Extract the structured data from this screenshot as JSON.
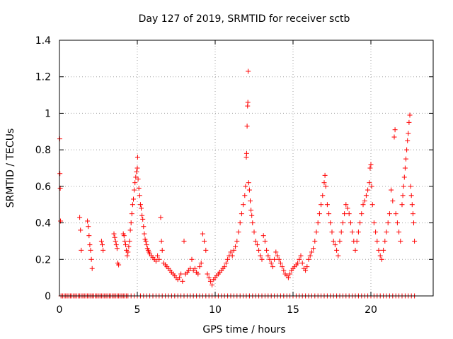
{
  "colors": {
    "series": "#ff0000",
    "axis": "#000000",
    "grid": "#a0a0a0"
  },
  "chart_data": {
    "type": "scatter",
    "title": "Day 127 of 2019, SRMTID for receiver sctb",
    "xlabel": "GPS time / hours",
    "ylabel": "SRMTID / TECUs",
    "xlim": [
      0,
      24
    ],
    "ylim": [
      0,
      1.4
    ],
    "xticks": [
      0,
      5,
      10,
      15,
      20
    ],
    "yticks": [
      0,
      0.2,
      0.4,
      0.6,
      0.8,
      1,
      1.2,
      1.4
    ],
    "xtick_labels": [
      "0",
      "5",
      "10",
      "15",
      "20"
    ],
    "ytick_labels": [
      "0",
      "0.2",
      "0.4",
      "0.6",
      "0.8",
      "1",
      "1.2",
      "1.4"
    ],
    "grid": true,
    "marker": "+",
    "series": [
      {
        "name": "SRMTID",
        "points": [
          [
            0.02,
            0.86
          ],
          [
            0.03,
            0.67
          ],
          [
            0.05,
            0.59
          ],
          [
            0.07,
            0.41
          ],
          [
            1.3,
            0.43
          ],
          [
            1.35,
            0.36
          ],
          [
            1.4,
            0.25
          ],
          [
            1.8,
            0.41
          ],
          [
            1.85,
            0.38
          ],
          [
            1.9,
            0.33
          ],
          [
            1.95,
            0.28
          ],
          [
            2.0,
            0.25
          ],
          [
            2.05,
            0.2
          ],
          [
            2.1,
            0.15
          ],
          [
            2.7,
            0.3
          ],
          [
            2.75,
            0.28
          ],
          [
            2.8,
            0.25
          ],
          [
            3.5,
            0.34
          ],
          [
            3.55,
            0.32
          ],
          [
            3.6,
            0.3
          ],
          [
            3.65,
            0.28
          ],
          [
            3.7,
            0.26
          ],
          [
            3.75,
            0.18
          ],
          [
            3.8,
            0.17
          ],
          [
            4.1,
            0.34
          ],
          [
            4.15,
            0.33
          ],
          [
            4.2,
            0.3
          ],
          [
            4.25,
            0.28
          ],
          [
            4.3,
            0.25
          ],
          [
            4.35,
            0.22
          ],
          [
            4.4,
            0.24
          ],
          [
            4.45,
            0.27
          ],
          [
            4.5,
            0.3
          ],
          [
            4.55,
            0.36
          ],
          [
            4.6,
            0.4
          ],
          [
            4.65,
            0.45
          ],
          [
            4.7,
            0.5
          ],
          [
            4.75,
            0.53
          ],
          [
            4.8,
            0.58
          ],
          [
            4.85,
            0.62
          ],
          [
            4.9,
            0.65
          ],
          [
            4.95,
            0.68
          ],
          [
            5.0,
            0.7
          ],
          [
            5.02,
            0.76
          ],
          [
            5.05,
            0.64
          ],
          [
            5.1,
            0.59
          ],
          [
            5.15,
            0.55
          ],
          [
            5.2,
            0.5
          ],
          [
            5.25,
            0.48
          ],
          [
            5.3,
            0.44
          ],
          [
            5.35,
            0.42
          ],
          [
            5.4,
            0.38
          ],
          [
            5.45,
            0.34
          ],
          [
            5.5,
            0.31
          ],
          [
            5.55,
            0.3
          ],
          [
            5.6,
            0.28
          ],
          [
            5.65,
            0.26
          ],
          [
            5.7,
            0.25
          ],
          [
            5.75,
            0.24
          ],
          [
            5.8,
            0.23
          ],
          [
            5.9,
            0.22
          ],
          [
            6.0,
            0.21
          ],
          [
            6.1,
            0.2
          ],
          [
            6.2,
            0.19
          ],
          [
            6.3,
            0.22
          ],
          [
            6.4,
            0.2
          ],
          [
            6.5,
            0.43
          ],
          [
            6.55,
            0.3
          ],
          [
            6.6,
            0.25
          ],
          [
            6.7,
            0.18
          ],
          [
            6.8,
            0.17
          ],
          [
            6.9,
            0.16
          ],
          [
            7.0,
            0.15
          ],
          [
            7.1,
            0.14
          ],
          [
            7.2,
            0.13
          ],
          [
            7.3,
            0.12
          ],
          [
            7.4,
            0.11
          ],
          [
            7.5,
            0.1
          ],
          [
            7.6,
            0.09
          ],
          [
            7.7,
            0.1
          ],
          [
            7.8,
            0.12
          ],
          [
            7.9,
            0.08
          ],
          [
            8.0,
            0.3
          ],
          [
            8.1,
            0.12
          ],
          [
            8.2,
            0.13
          ],
          [
            8.3,
            0.14
          ],
          [
            8.4,
            0.15
          ],
          [
            8.5,
            0.2
          ],
          [
            8.6,
            0.14
          ],
          [
            8.7,
            0.15
          ],
          [
            8.8,
            0.13
          ],
          [
            8.9,
            0.12
          ],
          [
            9.0,
            0.16
          ],
          [
            9.1,
            0.18
          ],
          [
            9.2,
            0.34
          ],
          [
            9.3,
            0.3
          ],
          [
            9.4,
            0.25
          ],
          [
            9.5,
            0.12
          ],
          [
            9.6,
            0.1
          ],
          [
            9.7,
            0.08
          ],
          [
            9.8,
            0.06
          ],
          [
            9.9,
            0.09
          ],
          [
            10.0,
            0.1
          ],
          [
            10.1,
            0.11
          ],
          [
            10.2,
            0.12
          ],
          [
            10.3,
            0.13
          ],
          [
            10.4,
            0.14
          ],
          [
            10.5,
            0.15
          ],
          [
            10.6,
            0.16
          ],
          [
            10.7,
            0.18
          ],
          [
            10.8,
            0.2
          ],
          [
            10.9,
            0.22
          ],
          [
            11.0,
            0.24
          ],
          [
            11.1,
            0.22
          ],
          [
            11.2,
            0.25
          ],
          [
            11.3,
            0.27
          ],
          [
            11.4,
            0.3
          ],
          [
            11.5,
            0.35
          ],
          [
            11.6,
            0.4
          ],
          [
            11.7,
            0.45
          ],
          [
            11.8,
            0.5
          ],
          [
            11.9,
            0.55
          ],
          [
            11.95,
            0.6
          ],
          [
            12.0,
            0.76
          ],
          [
            12.02,
            0.78
          ],
          [
            12.05,
            0.93
          ],
          [
            12.08,
            1.04
          ],
          [
            12.1,
            1.06
          ],
          [
            12.12,
            1.23
          ],
          [
            12.15,
            0.62
          ],
          [
            12.2,
            0.58
          ],
          [
            12.25,
            0.52
          ],
          [
            12.3,
            0.47
          ],
          [
            12.35,
            0.44
          ],
          [
            12.4,
            0.4
          ],
          [
            12.5,
            0.35
          ],
          [
            12.6,
            0.3
          ],
          [
            12.7,
            0.28
          ],
          [
            12.8,
            0.25
          ],
          [
            12.9,
            0.22
          ],
          [
            13.0,
            0.2
          ],
          [
            13.1,
            0.33
          ],
          [
            13.2,
            0.3
          ],
          [
            13.3,
            0.25
          ],
          [
            13.4,
            0.22
          ],
          [
            13.5,
            0.2
          ],
          [
            13.6,
            0.18
          ],
          [
            13.7,
            0.16
          ],
          [
            13.8,
            0.2
          ],
          [
            13.9,
            0.24
          ],
          [
            14.0,
            0.22
          ],
          [
            14.1,
            0.2
          ],
          [
            14.2,
            0.18
          ],
          [
            14.3,
            0.16
          ],
          [
            14.4,
            0.14
          ],
          [
            14.5,
            0.12
          ],
          [
            14.6,
            0.11
          ],
          [
            14.7,
            0.1
          ],
          [
            14.8,
            0.12
          ],
          [
            14.9,
            0.14
          ],
          [
            15.0,
            0.15
          ],
          [
            15.1,
            0.16
          ],
          [
            15.2,
            0.17
          ],
          [
            15.3,
            0.18
          ],
          [
            15.4,
            0.2
          ],
          [
            15.5,
            0.22
          ],
          [
            15.6,
            0.18
          ],
          [
            15.7,
            0.15
          ],
          [
            15.8,
            0.14
          ],
          [
            15.9,
            0.16
          ],
          [
            16.0,
            0.2
          ],
          [
            16.1,
            0.22
          ],
          [
            16.2,
            0.24
          ],
          [
            16.3,
            0.26
          ],
          [
            16.4,
            0.3
          ],
          [
            16.5,
            0.35
          ],
          [
            16.6,
            0.4
          ],
          [
            16.7,
            0.45
          ],
          [
            16.8,
            0.5
          ],
          [
            16.9,
            0.55
          ],
          [
            17.0,
            0.62
          ],
          [
            17.05,
            0.66
          ],
          [
            17.1,
            0.6
          ],
          [
            17.2,
            0.5
          ],
          [
            17.3,
            0.45
          ],
          [
            17.4,
            0.4
          ],
          [
            17.5,
            0.35
          ],
          [
            17.6,
            0.3
          ],
          [
            17.7,
            0.28
          ],
          [
            17.8,
            0.25
          ],
          [
            17.9,
            0.22
          ],
          [
            18.0,
            0.3
          ],
          [
            18.1,
            0.35
          ],
          [
            18.2,
            0.4
          ],
          [
            18.3,
            0.45
          ],
          [
            18.4,
            0.5
          ],
          [
            18.5,
            0.48
          ],
          [
            18.6,
            0.45
          ],
          [
            18.7,
            0.4
          ],
          [
            18.8,
            0.35
          ],
          [
            18.9,
            0.3
          ],
          [
            19.0,
            0.25
          ],
          [
            19.1,
            0.3
          ],
          [
            19.2,
            0.35
          ],
          [
            19.3,
            0.4
          ],
          [
            19.4,
            0.45
          ],
          [
            19.5,
            0.5
          ],
          [
            19.6,
            0.52
          ],
          [
            19.7,
            0.55
          ],
          [
            19.8,
            0.58
          ],
          [
            19.9,
            0.62
          ],
          [
            19.95,
            0.7
          ],
          [
            20.0,
            0.72
          ],
          [
            20.05,
            0.6
          ],
          [
            20.1,
            0.5
          ],
          [
            20.2,
            0.4
          ],
          [
            20.3,
            0.35
          ],
          [
            20.4,
            0.3
          ],
          [
            20.5,
            0.25
          ],
          [
            20.6,
            0.22
          ],
          [
            20.7,
            0.2
          ],
          [
            20.8,
            0.25
          ],
          [
            20.9,
            0.3
          ],
          [
            21.0,
            0.35
          ],
          [
            21.1,
            0.4
          ],
          [
            21.2,
            0.45
          ],
          [
            21.3,
            0.58
          ],
          [
            21.4,
            0.52
          ],
          [
            21.5,
            0.87
          ],
          [
            21.55,
            0.91
          ],
          [
            21.6,
            0.45
          ],
          [
            21.7,
            0.4
          ],
          [
            21.8,
            0.35
          ],
          [
            21.9,
            0.3
          ],
          [
            22.0,
            0.5
          ],
          [
            22.05,
            0.55
          ],
          [
            22.1,
            0.6
          ],
          [
            22.15,
            0.65
          ],
          [
            22.2,
            0.7
          ],
          [
            22.25,
            0.75
          ],
          [
            22.3,
            0.8
          ],
          [
            22.35,
            0.85
          ],
          [
            22.4,
            0.89
          ],
          [
            22.45,
            0.95
          ],
          [
            22.5,
            0.99
          ],
          [
            22.55,
            0.6
          ],
          [
            22.6,
            0.55
          ],
          [
            22.65,
            0.5
          ],
          [
            22.7,
            0.45
          ],
          [
            22.75,
            0.4
          ],
          [
            22.8,
            0.3
          ]
        ]
      }
    ],
    "zero_points_x": [
      0.1,
      0.2,
      0.3,
      0.4,
      0.5,
      0.6,
      0.7,
      0.8,
      0.9,
      1.0,
      1.1,
      1.2,
      1.3,
      1.4,
      1.5,
      1.6,
      1.7,
      1.8,
      1.9,
      2.0,
      2.1,
      2.2,
      2.3,
      2.4,
      2.5,
      2.6,
      2.7,
      2.8,
      2.9,
      3.0,
      3.1,
      3.2,
      3.3,
      3.4,
      3.5,
      3.6,
      3.7,
      3.8,
      3.9,
      4.0,
      4.1,
      4.2,
      4.3,
      4.4,
      4.6,
      4.8,
      5.0,
      5.2,
      5.4,
      5.6,
      5.8,
      6.0,
      6.2,
      6.4,
      6.6,
      6.8,
      7.0,
      7.2,
      7.4,
      7.6,
      7.8,
      8.0,
      8.2,
      8.4,
      8.6,
      8.8,
      9.0,
      9.2,
      9.4,
      9.6,
      9.8,
      10.0,
      10.2,
      10.4,
      10.6,
      10.8,
      11.0,
      11.2,
      11.4,
      11.6,
      11.8,
      12.0,
      12.2,
      12.4,
      12.6,
      12.8,
      13.0,
      13.2,
      13.4,
      13.6,
      13.8,
      14.0,
      14.2,
      14.4,
      14.6,
      14.8,
      15.0,
      15.2,
      15.4,
      15.6,
      15.8,
      16.0,
      16.2,
      16.4,
      16.6,
      16.8,
      17.0,
      17.2,
      17.4,
      17.6,
      17.8,
      18.0,
      18.2,
      18.4,
      18.6,
      18.8,
      19.0,
      19.2,
      19.4,
      19.6,
      19.8,
      20.0,
      20.2,
      20.4,
      20.6,
      20.8,
      21.0,
      21.2,
      21.4,
      21.6,
      21.8,
      22.0,
      22.2,
      22.4,
      22.6,
      22.8
    ]
  }
}
